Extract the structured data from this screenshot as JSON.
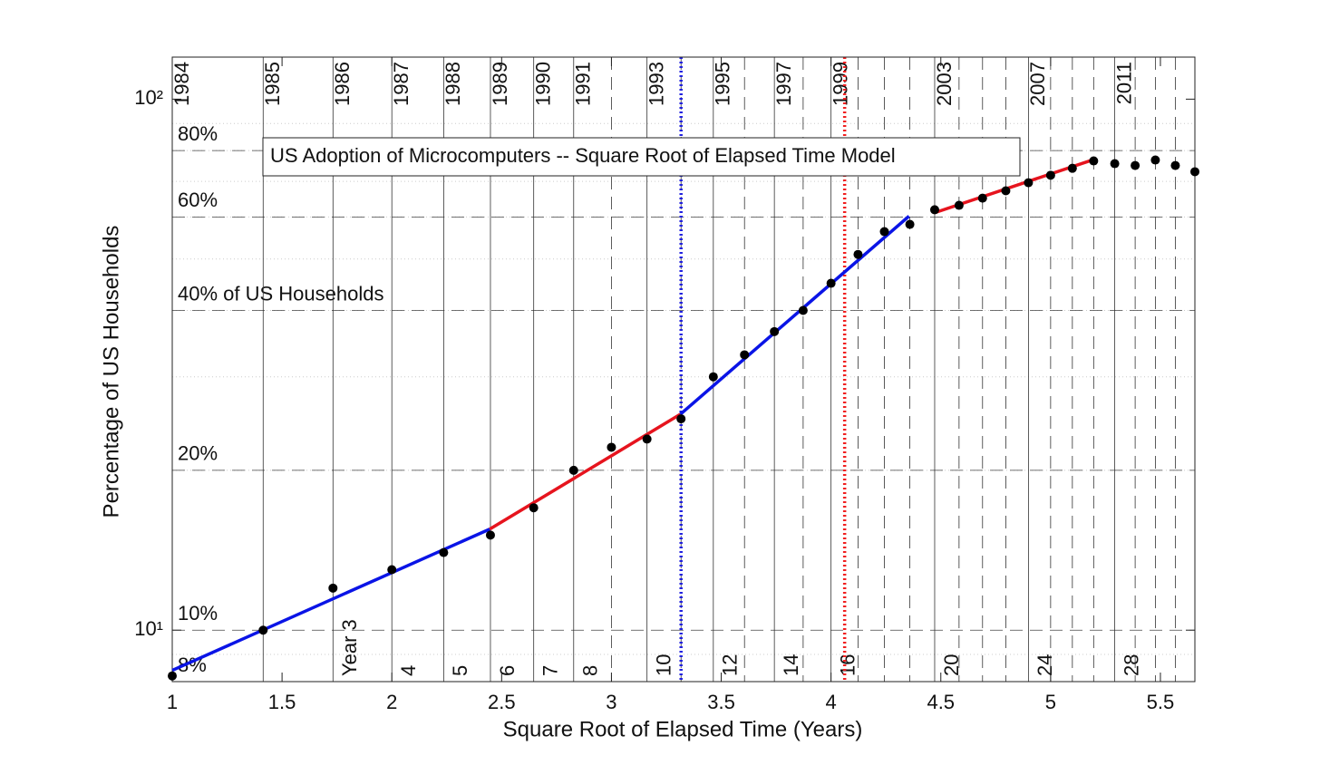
{
  "chart_data": {
    "type": "scatter",
    "title": "US Adoption of Microcomputers -- Square Root of Elapsed Time Model",
    "xlabel": "Square Root of Elapsed Time (Years)",
    "ylabel": "Percentage of US Households",
    "xlim": [
      1,
      5.657
    ],
    "ylim": [
      8,
      120
    ],
    "log_y": true,
    "xticks": [
      1,
      1.5,
      2,
      2.5,
      3,
      3.5,
      4,
      4.5,
      5,
      5.5
    ],
    "yticks": [
      {
        "value": 10,
        "label": "10¹"
      },
      {
        "value": 100,
        "label": "10²"
      }
    ],
    "yminor": [
      9,
      20,
      30,
      40,
      50,
      60,
      70,
      80,
      90
    ],
    "hlines": [
      {
        "value": 8,
        "label": "8%"
      },
      {
        "value": 10,
        "label": "10%"
      },
      {
        "value": 20,
        "label": "20%"
      },
      {
        "value": 40,
        "label": "40% of US Households"
      },
      {
        "value": 60,
        "label": "60%"
      },
      {
        "value": 80,
        "label": "80%"
      }
    ],
    "vlines": [
      {
        "x": 1,
        "top": "1984"
      },
      {
        "x": 1.414,
        "top": "1985"
      },
      {
        "x": 1.732,
        "top": "1986",
        "bottom": "Year 3"
      },
      {
        "x": 2,
        "top": "1987",
        "bottom": "4"
      },
      {
        "x": 2.236,
        "top": "1988",
        "bottom": "5"
      },
      {
        "x": 2.449,
        "top": "1989",
        "bottom": "6"
      },
      {
        "x": 2.646,
        "top": "1990",
        "bottom": "7"
      },
      {
        "x": 2.828,
        "top": "1991",
        "bottom": "8"
      },
      {
        "x": 3
      },
      {
        "x": 3.162,
        "top": "1993",
        "bottom": "10"
      },
      {
        "x": 3.317
      },
      {
        "x": 3.464,
        "top": "1995",
        "bottom": "12"
      },
      {
        "x": 3.606
      },
      {
        "x": 3.742,
        "top": "1997",
        "bottom": "14"
      },
      {
        "x": 3.873
      },
      {
        "x": 4,
        "top": "1999",
        "bottom": "16"
      },
      {
        "x": 4.123
      },
      {
        "x": 4.243
      },
      {
        "x": 4.359
      },
      {
        "x": 4.472,
        "top": "2003",
        "bottom": "20"
      },
      {
        "x": 4.583
      },
      {
        "x": 4.69
      },
      {
        "x": 4.796
      },
      {
        "x": 4.899,
        "top": "2007",
        "bottom": "24"
      },
      {
        "x": 5
      },
      {
        "x": 5.099
      },
      {
        "x": 5.196
      },
      {
        "x": 5.292,
        "top": "2011",
        "bottom": "28"
      },
      {
        "x": 5.385
      },
      {
        "x": 5.477
      },
      {
        "x": 5.568
      },
      {
        "x": 5.657
      }
    ],
    "markers": [
      {
        "x": 3.317,
        "color": "#2020e0"
      },
      {
        "x": 4.062,
        "color": "#f02020"
      }
    ],
    "points": {
      "color": "#000000",
      "x": [
        1,
        1.414,
        1.732,
        2,
        2.236,
        2.449,
        2.646,
        2.828,
        3,
        3.162,
        3.317,
        3.464,
        3.606,
        3.742,
        3.873,
        4,
        4.123,
        4.243,
        4.359,
        4.472,
        4.583,
        4.69,
        4.796,
        4.899,
        5,
        5.099,
        5.196,
        5.292,
        5.385,
        5.477,
        5.568,
        5.657
      ],
      "values": [
        8.2,
        10,
        12,
        13,
        14,
        15.1,
        17,
        20,
        22.1,
        22.9,
        25,
        30,
        33,
        36.5,
        40,
        45,
        51,
        56.3,
        58.1,
        61.9,
        63.1,
        65.1,
        67.2,
        69.6,
        71.9,
        74.1,
        76.5,
        75.6,
        75,
        76.8,
        75,
        73
      ]
    },
    "fits": [
      {
        "color": "#0a14e6",
        "x": [
          1,
          2.446
        ],
        "values": [
          8.4,
          15.5
        ]
      },
      {
        "color": "#e6141e",
        "x": [
          2.446,
          3.314
        ],
        "values": [
          15.5,
          25.5
        ]
      },
      {
        "color": "#0a14e6",
        "x": [
          3.314,
          4.355
        ],
        "values": [
          25.5,
          60.2
        ]
      },
      {
        "color": "#e6141e",
        "x": [
          4.471,
          5.202
        ],
        "values": [
          61.1,
          77.1
        ]
      }
    ]
  }
}
